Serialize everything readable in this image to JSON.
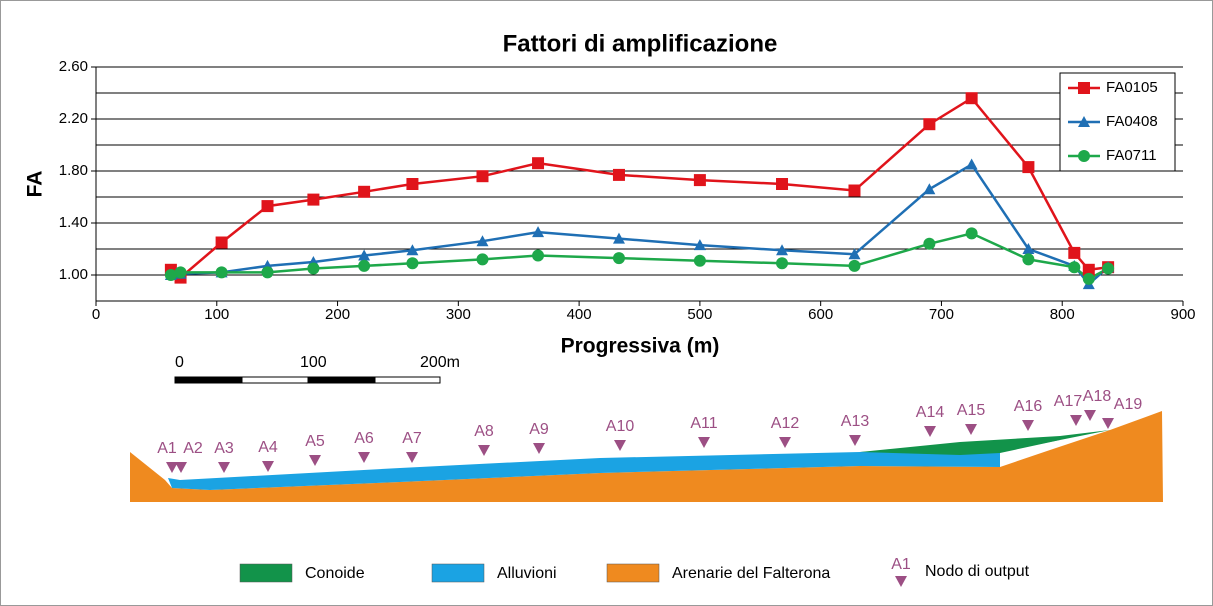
{
  "chart_data": {
    "type": "line",
    "title": "Fattori di amplificazione",
    "x_label": "Progressiva (m)",
    "y_label": "FA",
    "x": [
      62,
      70,
      104,
      142,
      180,
      222,
      262,
      320,
      366,
      433,
      500,
      568,
      628,
      690,
      725,
      772,
      810,
      822,
      838
    ],
    "series": [
      {
        "name": "FA0105",
        "color": "#e0141b",
        "marker": "square",
        "values": [
          1.04,
          0.98,
          1.25,
          1.53,
          1.58,
          1.64,
          1.7,
          1.76,
          1.86,
          1.77,
          1.73,
          1.7,
          1.65,
          2.16,
          2.36,
          1.83,
          1.17,
          1.04,
          1.06
        ]
      },
      {
        "name": "FA0408",
        "color": "#1f6fb4",
        "marker": "triangle",
        "values": [
          1.0,
          1.01,
          1.02,
          1.07,
          1.1,
          1.15,
          1.19,
          1.26,
          1.33,
          1.28,
          1.23,
          1.19,
          1.16,
          1.66,
          1.85,
          1.2,
          1.07,
          0.93,
          1.06
        ]
      },
      {
        "name": "FA0711",
        "color": "#1ea84a",
        "marker": "circle",
        "values": [
          1.0,
          1.02,
          1.02,
          1.02,
          1.05,
          1.07,
          1.09,
          1.12,
          1.15,
          1.13,
          1.11,
          1.09,
          1.07,
          1.24,
          1.32,
          1.12,
          1.06,
          0.97,
          1.05
        ]
      }
    ],
    "xlim": [
      0,
      900
    ],
    "xticks": [
      0,
      100,
      200,
      300,
      400,
      500,
      600,
      700,
      800,
      900
    ],
    "ylim": [
      0.8,
      2.6
    ],
    "yticks": [
      {
        "value": 1,
        "label": "1.00"
      },
      {
        "value": 1.4,
        "label": "1.40"
      },
      {
        "value": 1.8,
        "label": "1.80"
      },
      {
        "value": 2.2,
        "label": "2.20"
      },
      {
        "value": 2.6,
        "label": "2.60"
      }
    ],
    "yminor": [
      1.2,
      1.6,
      2.0,
      2.4
    ],
    "grid": true,
    "legend": "top-right"
  },
  "section": {
    "scale_labels": [
      "0",
      "100",
      "200m"
    ],
    "nodes": [
      "A1",
      "A2",
      "A3",
      "A4",
      "A5",
      "A6",
      "A7",
      "A8",
      "A9",
      "A10",
      "A11",
      "A12",
      "A13",
      "A14",
      "A15",
      "A16",
      "A17",
      "A18",
      "A19"
    ],
    "legend": [
      {
        "label": "Conoide",
        "color": "#12934a"
      },
      {
        "label": "Alluvioni",
        "color": "#1ba3e3"
      },
      {
        "label": "Arenarie del Falterona",
        "color": "#ef8a1f"
      }
    ],
    "marker_legend": {
      "symbol": "A1",
      "label": "Nodo di output",
      "color": "#9c4f84"
    }
  }
}
